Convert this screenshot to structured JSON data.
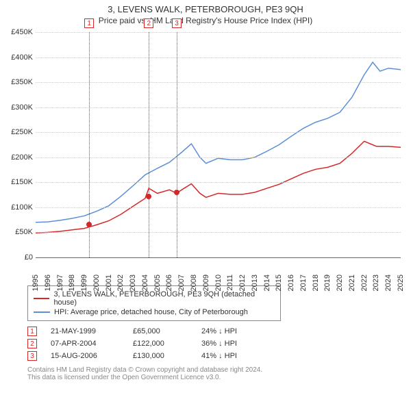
{
  "title": "3, LEVENS WALK, PETERBOROUGH, PE3 9QH",
  "subtitle": "Price paid vs. HM Land Registry's House Price Index (HPI)",
  "chart": {
    "type": "line",
    "background_color": "#ffffff",
    "grid_color": "#cccccc",
    "axis_color": "#666666",
    "text_color": "#333333",
    "title_fontsize": 13,
    "label_fontsize": 11,
    "ylim": [
      0,
      450000
    ],
    "ytick_step": 50000,
    "ytick_labels": [
      "£0",
      "£50K",
      "£100K",
      "£150K",
      "£200K",
      "£250K",
      "£300K",
      "£350K",
      "£400K",
      "£450K"
    ],
    "x_years": [
      1995,
      1996,
      1997,
      1998,
      1999,
      2000,
      2001,
      2002,
      2003,
      2004,
      2005,
      2006,
      2007,
      2008,
      2009,
      2010,
      2011,
      2012,
      2013,
      2014,
      2015,
      2016,
      2017,
      2018,
      2019,
      2020,
      2021,
      2022,
      2023,
      2024,
      2025
    ],
    "series": [
      {
        "name": "HPI: Average price, detached house, City of Peterborough",
        "color": "#5b8fd6",
        "line_width": 1.5,
        "data": [
          [
            1995,
            70000
          ],
          [
            1996,
            71000
          ],
          [
            1997,
            74000
          ],
          [
            1998,
            78000
          ],
          [
            1999,
            83000
          ],
          [
            2000,
            92000
          ],
          [
            2001,
            103000
          ],
          [
            2002,
            122000
          ],
          [
            2003,
            143000
          ],
          [
            2004,
            165000
          ],
          [
            2005,
            178000
          ],
          [
            2006,
            190000
          ],
          [
            2007,
            210000
          ],
          [
            2007.8,
            227000
          ],
          [
            2008.5,
            200000
          ],
          [
            2009,
            188000
          ],
          [
            2010,
            198000
          ],
          [
            2011,
            195000
          ],
          [
            2012,
            195000
          ],
          [
            2013,
            200000
          ],
          [
            2014,
            212000
          ],
          [
            2015,
            225000
          ],
          [
            2016,
            242000
          ],
          [
            2017,
            258000
          ],
          [
            2018,
            270000
          ],
          [
            2019,
            278000
          ],
          [
            2020,
            290000
          ],
          [
            2021,
            320000
          ],
          [
            2022,
            365000
          ],
          [
            2022.7,
            390000
          ],
          [
            2023.3,
            372000
          ],
          [
            2024,
            378000
          ],
          [
            2025,
            375000
          ]
        ]
      },
      {
        "name": "3, LEVENS WALK, PETERBOROUGH, PE3 9QH (detached house)",
        "color": "#d62728",
        "line_width": 1.5,
        "data": [
          [
            1995,
            49000
          ],
          [
            1996,
            50000
          ],
          [
            1997,
            52000
          ],
          [
            1998,
            55000
          ],
          [
            1999,
            58000
          ],
          [
            2000,
            65000
          ],
          [
            2001,
            73000
          ],
          [
            2002,
            86000
          ],
          [
            2003,
            102000
          ],
          [
            2004,
            118000
          ],
          [
            2004.3,
            138000
          ],
          [
            2005,
            128000
          ],
          [
            2006,
            135000
          ],
          [
            2006.6,
            128000
          ],
          [
            2007,
            135000
          ],
          [
            2007.8,
            147000
          ],
          [
            2008.5,
            128000
          ],
          [
            2009,
            120000
          ],
          [
            2010,
            128000
          ],
          [
            2011,
            126000
          ],
          [
            2012,
            126000
          ],
          [
            2013,
            130000
          ],
          [
            2014,
            138000
          ],
          [
            2015,
            146000
          ],
          [
            2016,
            157000
          ],
          [
            2017,
            168000
          ],
          [
            2018,
            176000
          ],
          [
            2019,
            180000
          ],
          [
            2020,
            188000
          ],
          [
            2021,
            208000
          ],
          [
            2022,
            232000
          ],
          [
            2023,
            222000
          ],
          [
            2024,
            222000
          ],
          [
            2025,
            220000
          ]
        ]
      }
    ],
    "markers": [
      {
        "n": "1",
        "year": 1999.4,
        "price": 65000,
        "color": "#d62728"
      },
      {
        "n": "2",
        "year": 2004.3,
        "price": 122000,
        "color": "#d62728"
      },
      {
        "n": "3",
        "year": 2006.6,
        "price": 130000,
        "color": "#d62728"
      }
    ]
  },
  "legend": {
    "items": [
      {
        "color": "#d62728",
        "label": "3, LEVENS WALK, PETERBOROUGH, PE3 9QH (detached house)"
      },
      {
        "color": "#5b8fd6",
        "label": "HPI: Average price, detached house, City of Peterborough"
      }
    ]
  },
  "events": [
    {
      "n": "1",
      "color": "#d62728",
      "date": "21-MAY-1999",
      "price": "£65,000",
      "delta": "24% ↓ HPI"
    },
    {
      "n": "2",
      "color": "#d62728",
      "date": "07-APR-2004",
      "price": "£122,000",
      "delta": "36% ↓ HPI"
    },
    {
      "n": "3",
      "color": "#d62728",
      "date": "15-AUG-2006",
      "price": "£130,000",
      "delta": "41% ↓ HPI"
    }
  ],
  "footnote_line1": "Contains HM Land Registry data © Crown copyright and database right 2024.",
  "footnote_line2": "This data is licensed under the Open Government Licence v3.0."
}
